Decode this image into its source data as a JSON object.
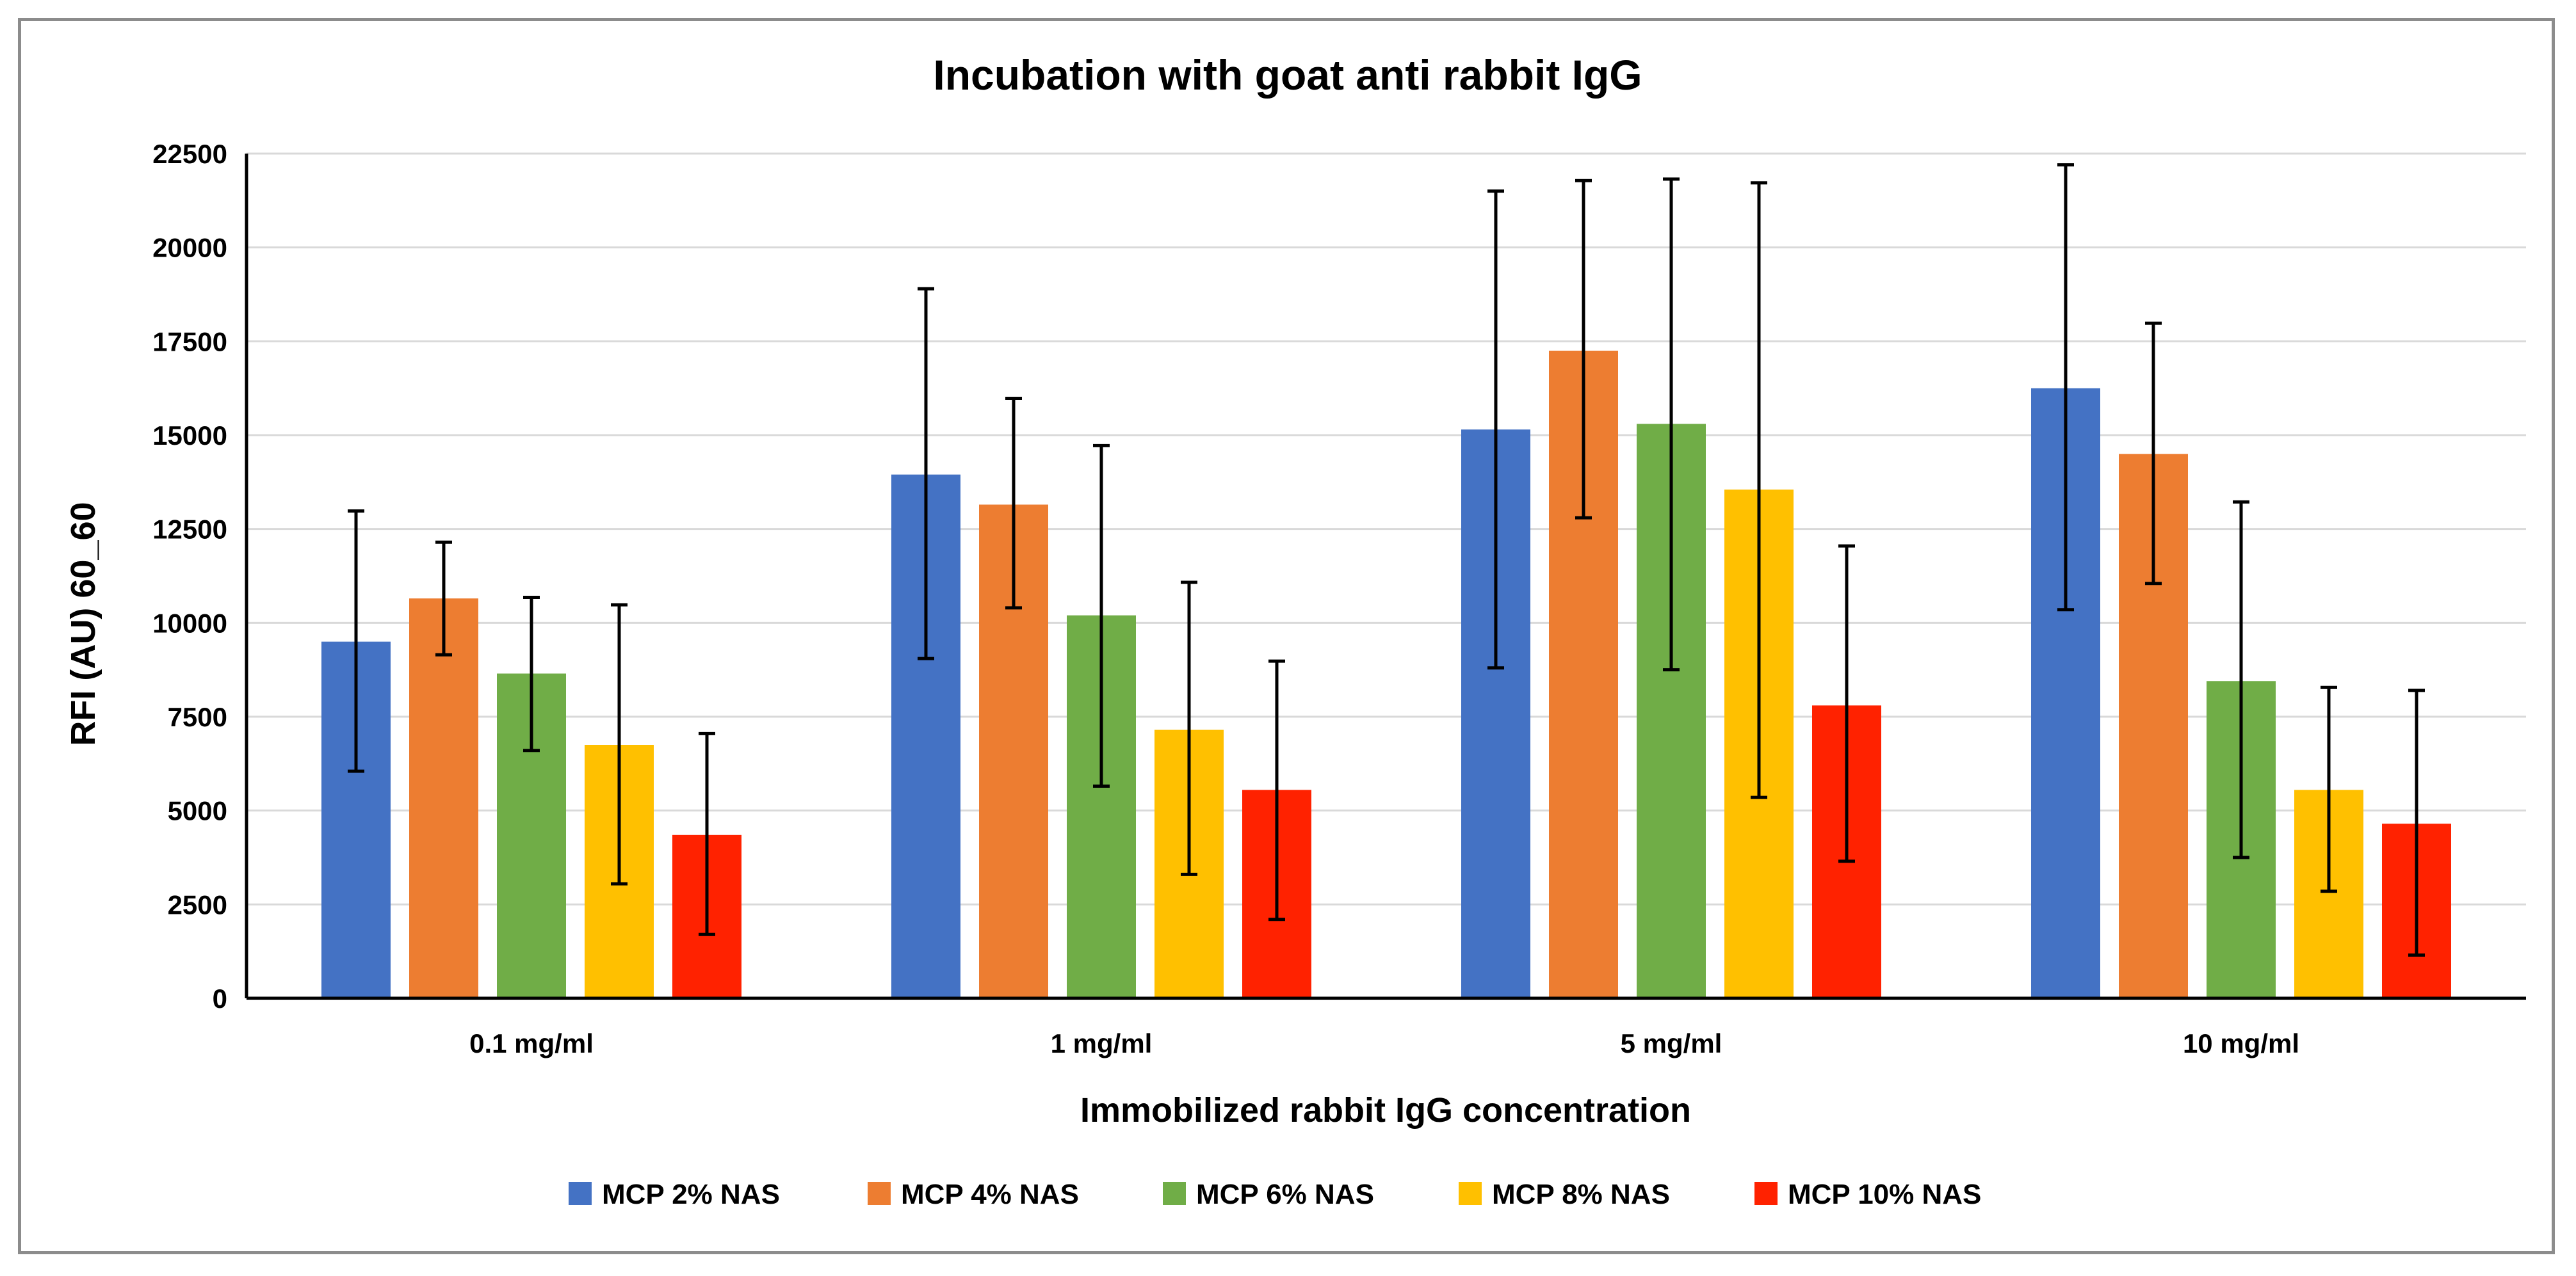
{
  "chart_data": {
    "type": "bar",
    "title": "Incubation with goat anti rabbit IgG",
    "xlabel": "Immobilized rabbit IgG concentration",
    "ylabel": "RFI (AU) 60_60",
    "ylim": [
      0,
      22500
    ],
    "yticks": [
      0,
      2500,
      5000,
      7500,
      10000,
      12500,
      15000,
      17500,
      20000,
      22500
    ],
    "grid": true,
    "legend_position": "bottom",
    "categories": [
      "0.1 mg/ml",
      "1 mg/ml",
      "5 mg/ml",
      "10 mg/ml"
    ],
    "series": [
      {
        "name": "MCP 2% NAS",
        "color": "#4472C4",
        "values": [
          9500,
          13950,
          15150,
          16250
        ],
        "error_low": [
          6050,
          9050,
          8800,
          10350
        ],
        "error_high": [
          12980,
          18900,
          21500,
          22200
        ]
      },
      {
        "name": "MCP 4% NAS",
        "color": "#ED7D31",
        "values": [
          10650,
          13150,
          17250,
          14500
        ],
        "error_low": [
          9150,
          10400,
          12800,
          11050
        ],
        "error_high": [
          12150,
          15980,
          21780,
          17980
        ]
      },
      {
        "name": "MCP 6% NAS",
        "color": "#70AD47",
        "values": [
          8650,
          10200,
          15300,
          8450
        ],
        "error_low": [
          6600,
          5650,
          8750,
          3750
        ],
        "error_high": [
          10680,
          14720,
          21820,
          13220
        ]
      },
      {
        "name": "MCP 8% NAS",
        "color": "#FFC000",
        "values": [
          6750,
          7150,
          13550,
          5550
        ],
        "error_low": [
          3050,
          3300,
          5350,
          2850
        ],
        "error_high": [
          10480,
          11080,
          21720,
          8280
        ]
      },
      {
        "name": "MCP 10% NAS",
        "color": "#FF2200",
        "values": [
          4350,
          5550,
          7800,
          4650
        ],
        "error_low": [
          1700,
          2100,
          3650,
          1150
        ],
        "error_high": [
          7050,
          8980,
          12050,
          8200
        ]
      }
    ]
  }
}
